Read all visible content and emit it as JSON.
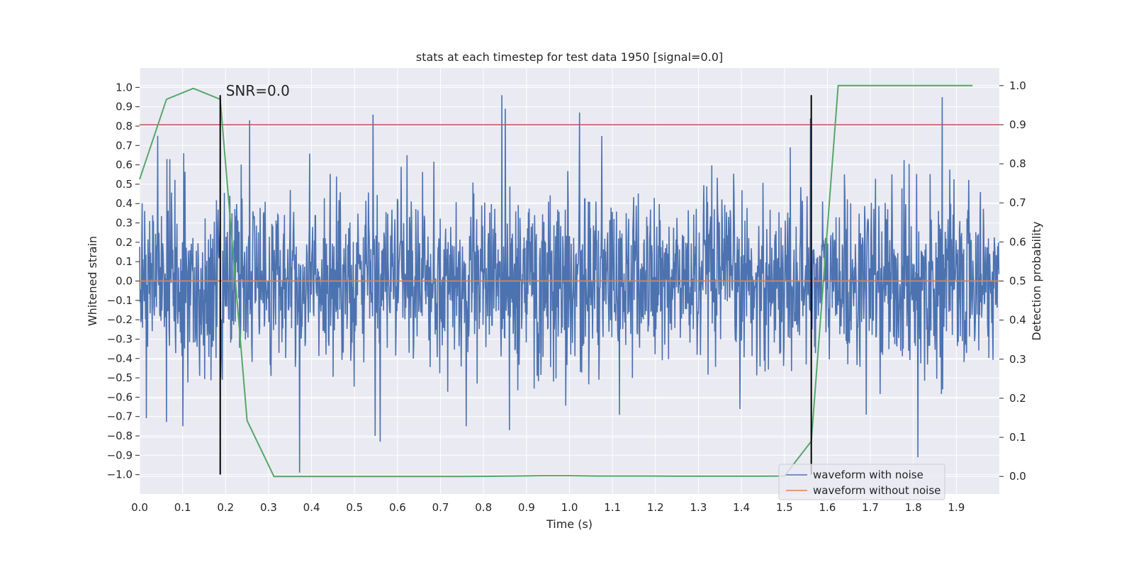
{
  "chart_data": {
    "type": "line",
    "title": "stats at each timestep for test data 1950 [signal=0.0]",
    "xlabel": "Time (s)",
    "ylabel": "Whitened strain",
    "y2label": "Detection probability",
    "xlim": [
      0.0,
      2.0
    ],
    "ylim": [
      -1.1,
      1.1
    ],
    "y2lim": [
      -0.045,
      1.045
    ],
    "xticks": [
      "0.0",
      "0.1",
      "0.2",
      "0.3",
      "0.4",
      "0.5",
      "0.6",
      "0.7",
      "0.8",
      "0.9",
      "1.0",
      "1.1",
      "1.2",
      "1.3",
      "1.4",
      "1.5",
      "1.6",
      "1.7",
      "1.8",
      "1.9"
    ],
    "yticks": [
      "1.0",
      "0.9",
      "0.8",
      "0.7",
      "0.6",
      "0.5",
      "0.4",
      "0.3",
      "0.2",
      "0.1",
      "0.0",
      "−0.1",
      "−0.2",
      "−0.3",
      "−0.4",
      "−0.5",
      "−0.6",
      "−0.7",
      "−0.8",
      "−0.9",
      "−1.0"
    ],
    "y2ticks": [
      "1.0",
      "0.9",
      "0.8",
      "0.7",
      "0.6",
      "0.5",
      "0.4",
      "0.3",
      "0.2",
      "0.1",
      "0.0"
    ],
    "grid": true,
    "legend_position": "bottom-right",
    "annotation": "SNR=0.0",
    "series": [
      {
        "name": "waveform with noise",
        "color": "#4c72b0",
        "style": "dense noisy oscillation (approx. ±0.4 typical, extremes ±0.95)",
        "n_samples": 2048,
        "peaks": [
          {
            "x": 0.042,
            "y": 0.75
          },
          {
            "x": 0.063,
            "y": 0.63
          },
          {
            "x": 0.103,
            "y": 0.66
          },
          {
            "x": 0.256,
            "y": 0.83
          },
          {
            "x": 0.372,
            "y": 0.72
          },
          {
            "x": 0.543,
            "y": 0.86
          },
          {
            "x": 0.843,
            "y": 0.96
          },
          {
            "x": 0.851,
            "y": 0.89
          },
          {
            "x": 1.023,
            "y": 0.87
          },
          {
            "x": 1.561,
            "y": 0.84
          },
          {
            "x": 1.867,
            "y": 0.95
          },
          {
            "x": 0.3,
            "y": 0.0
          }
        ],
        "troughs": [
          {
            "x": 0.101,
            "y": -0.75
          },
          {
            "x": 0.372,
            "y": -0.99
          },
          {
            "x": 0.56,
            "y": -0.83
          },
          {
            "x": 0.548,
            "y": -0.8
          },
          {
            "x": 0.86,
            "y": -0.77
          },
          {
            "x": 0.76,
            "y": -0.75
          },
          {
            "x": 1.811,
            "y": -0.91
          },
          {
            "x": 1.69,
            "y": -0.69
          }
        ]
      },
      {
        "name": "waveform without noise",
        "color": "#dd8452",
        "x": [
          0.0,
          2.0
        ],
        "y": [
          0.0,
          0.0
        ]
      },
      {
        "name": "detection probability",
        "color": "#55a868",
        "axis": "right",
        "x": [
          0.0,
          0.0625,
          0.125,
          0.1875,
          0.25,
          0.3125,
          0.375,
          0.4375,
          0.5,
          0.5625,
          0.625,
          0.6875,
          0.75,
          0.8125,
          0.875,
          0.9375,
          1.0,
          1.0625,
          1.125,
          1.1875,
          1.25,
          1.3125,
          1.375,
          1.4375,
          1.5,
          1.5625,
          1.625,
          1.6875,
          1.75,
          1.8125,
          1.875,
          1.9375
        ],
        "y": [
          0.76,
          0.965,
          0.993,
          0.965,
          0.143,
          0.0,
          0.0,
          0.0,
          0.0,
          0.0,
          0.0,
          0.0,
          0.0,
          0.0004,
          0.001,
          0.002,
          0.002,
          0.001,
          0.001,
          0.001,
          0.0005,
          0.0005,
          0.0005,
          0.0005,
          0.001,
          0.09,
          1.0,
          1.0,
          1.0,
          1.0,
          1.0,
          1.0
        ]
      }
    ],
    "hlines": [
      {
        "y2": 0.9,
        "color": "#c44e52"
      }
    ],
    "vlines": [
      {
        "x": 0.1875,
        "ymin": -1.0,
        "ymax": 0.96,
        "color": "#000000"
      },
      {
        "x": 1.5625,
        "ymin": -1.0,
        "ymax": 0.96,
        "color": "#000000"
      }
    ]
  }
}
